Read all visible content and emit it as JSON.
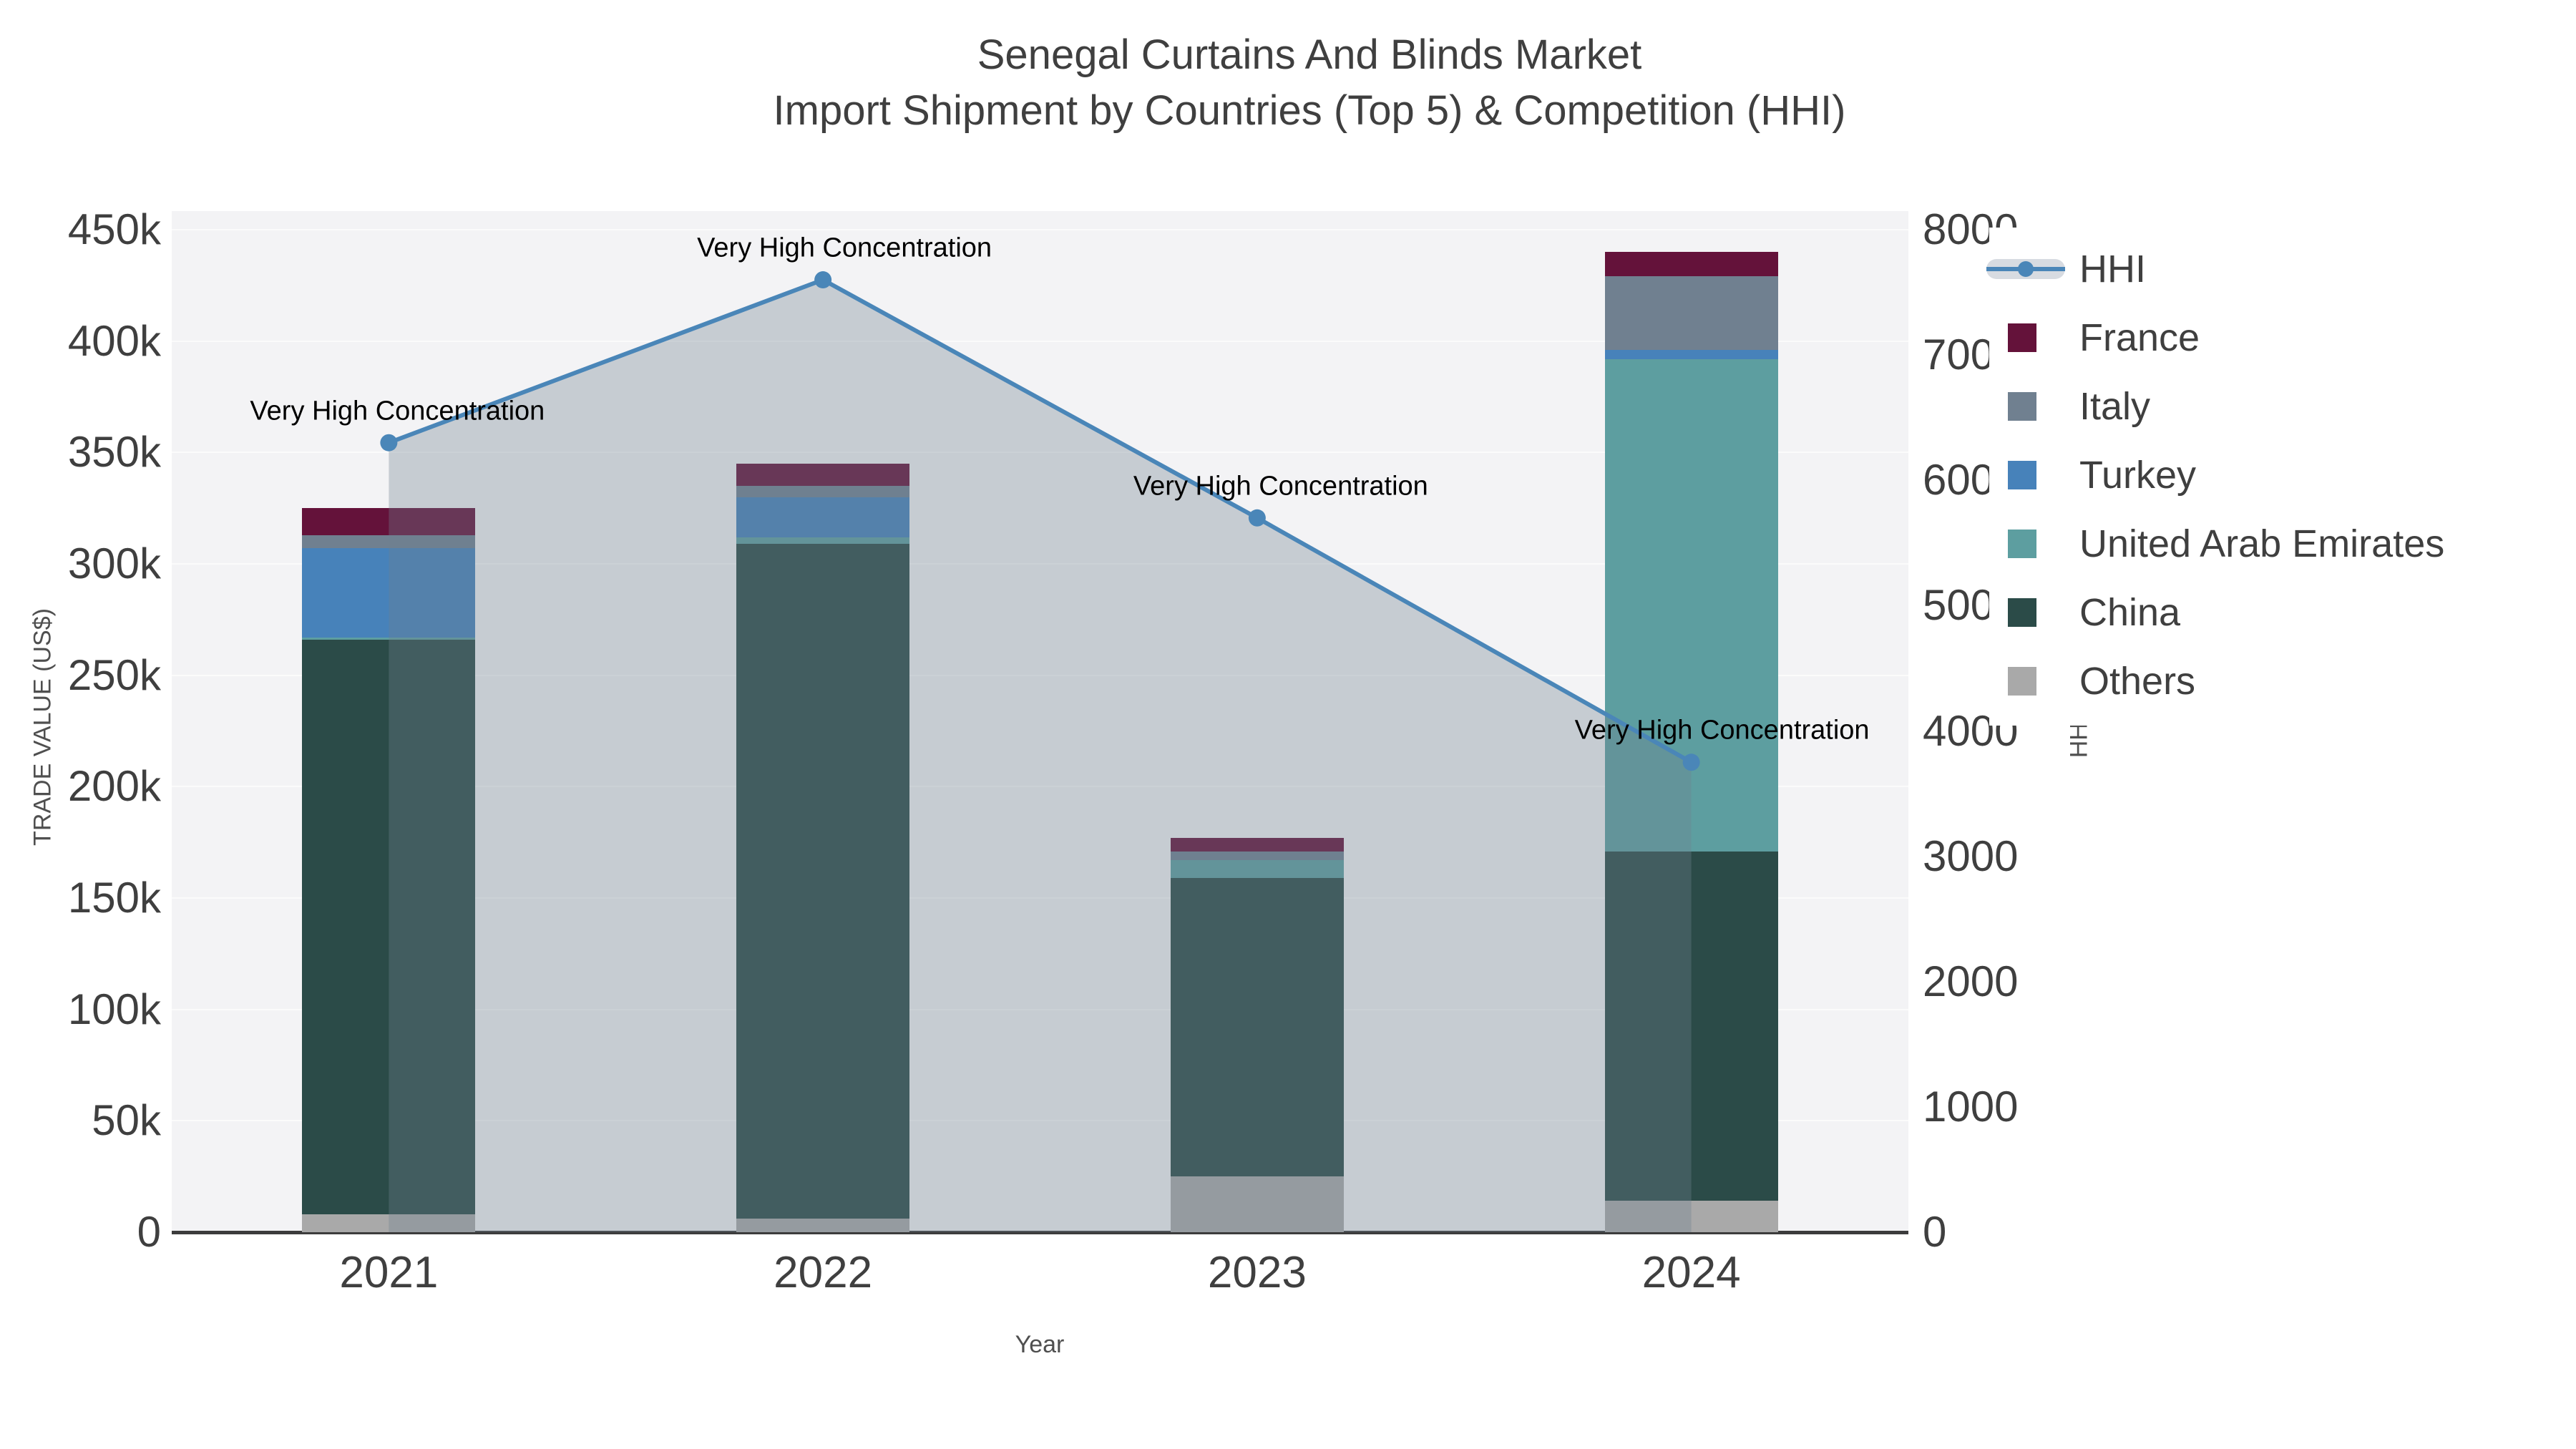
{
  "title": {
    "line1": "Senegal Curtains And Blinds Market",
    "line2": "Import Shipment by Countries (Top 5) & Competition (HHI)"
  },
  "axes": {
    "y_title": "TRADE VALUE (US$)",
    "y2_title": "HHI",
    "x_title": "Year",
    "y_ticks": [
      {
        "value": 0,
        "label": "0"
      },
      {
        "value": 50000,
        "label": "50k"
      },
      {
        "value": 100000,
        "label": "100k"
      },
      {
        "value": 150000,
        "label": "150k"
      },
      {
        "value": 200000,
        "label": "200k"
      },
      {
        "value": 250000,
        "label": "250k"
      },
      {
        "value": 300000,
        "label": "300k"
      },
      {
        "value": 350000,
        "label": "350k"
      },
      {
        "value": 400000,
        "label": "400k"
      },
      {
        "value": 450000,
        "label": "450k"
      }
    ],
    "y2_ticks": [
      {
        "value": 0,
        "label": "0"
      },
      {
        "value": 1000,
        "label": "1000"
      },
      {
        "value": 2000,
        "label": "2000"
      },
      {
        "value": 3000,
        "label": "3000"
      },
      {
        "value": 4000,
        "label": "4000"
      },
      {
        "value": 5000,
        "label": "5000"
      },
      {
        "value": 6000,
        "label": "6000"
      },
      {
        "value": 7000,
        "label": "7000"
      },
      {
        "value": 8000,
        "label": "8000"
      }
    ]
  },
  "legend": {
    "items": [
      {
        "label": "HHI",
        "type": "line",
        "color": "#4a86b8"
      },
      {
        "label": "France",
        "type": "swatch",
        "color": "#64123a"
      },
      {
        "label": "Italy",
        "type": "swatch",
        "color": "#708090"
      },
      {
        "label": "Turkey",
        "type": "swatch",
        "color": "#4782ba"
      },
      {
        "label": "United Arab Emirates",
        "type": "swatch",
        "color": "#5d9ea0"
      },
      {
        "label": "China",
        "type": "swatch",
        "color": "#2b4b48"
      },
      {
        "label": "Others",
        "type": "swatch",
        "color": "#a9a9a9"
      }
    ]
  },
  "annotation_text": "Very High Concentration",
  "chart_data": {
    "type": "bar+line combo (stacked bars on y, HHI line on y2, area fill to zero)",
    "categories": [
      "2021",
      "2022",
      "2023",
      "2024"
    ],
    "series": [
      {
        "name": "Others",
        "values": [
          8000,
          6000,
          25000,
          14000
        ],
        "color": "#a9a9a9"
      },
      {
        "name": "China",
        "values": [
          258000,
          303000,
          134000,
          157000
        ],
        "color": "#2b4b48"
      },
      {
        "name": "United Arab Emirates",
        "values": [
          1000,
          3000,
          8000,
          221000
        ],
        "color": "#5d9ea0"
      },
      {
        "name": "Turkey",
        "values": [
          40000,
          18000,
          0,
          4000
        ],
        "color": "#4782ba"
      },
      {
        "name": "Italy",
        "values": [
          6000,
          5000,
          4000,
          33000
        ],
        "color": "#708090"
      },
      {
        "name": "France",
        "values": [
          12000,
          10000,
          6000,
          11000
        ],
        "color": "#64123a"
      }
    ],
    "bar_totals": [
      325000,
      345000,
      177000,
      440000
    ],
    "hhi_line": {
      "name": "HHI",
      "values": [
        6300,
        7600,
        5700,
        3750
      ],
      "color": "#4a86b8",
      "fill_color": "rgba(112,128,144,0.34)",
      "annotations": [
        "Very High Concentration",
        "Very High Concentration",
        "Very High Concentration",
        "Very High Concentration"
      ]
    },
    "ylabel": "TRADE VALUE (US$)",
    "y2label": "HHI",
    "xlabel": "Year",
    "ylim": [
      0,
      450000
    ],
    "y2lim": [
      0,
      8000
    ],
    "grid": true,
    "legend_position": "top-right",
    "plot_bg": "#f3f3f5"
  }
}
